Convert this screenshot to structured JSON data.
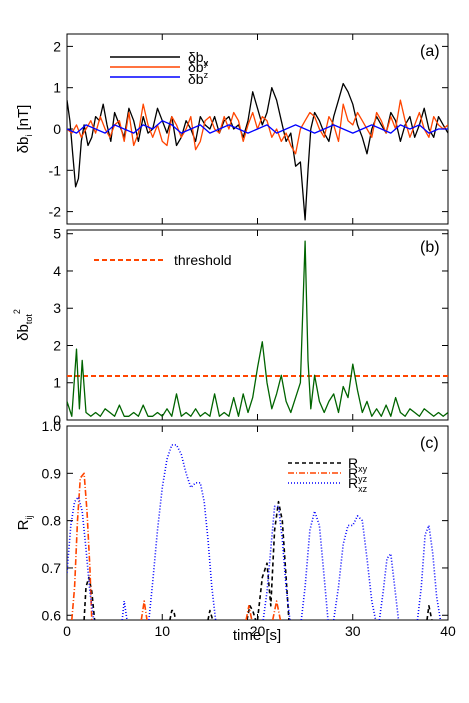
{
  "chart_data": [
    {
      "panel": "(a)",
      "type": "line",
      "ylabel": "δb_i [nT]",
      "xlim": [
        0,
        40
      ],
      "ylim": [
        -2.3,
        2.3
      ],
      "xticks": [
        0,
        10,
        20,
        30,
        40
      ],
      "yticks": [
        2,
        1,
        0,
        -1,
        -2
      ],
      "legend": "top-left",
      "series": [
        {
          "name": "δb_x",
          "color": "#000000",
          "x": [
            0,
            0.3,
            0.6,
            0.9,
            1.2,
            1.5,
            1.8,
            2.2,
            2.6,
            3.0,
            3.4,
            3.8,
            4.2,
            4.6,
            5.0,
            5.5,
            6.0,
            6.5,
            7.0,
            7.5,
            8.0,
            8.5,
            9.0,
            9.5,
            10.0,
            10.5,
            11.0,
            11.5,
            12.0,
            12.5,
            13.0,
            13.5,
            14.0,
            14.5,
            15.0,
            15.5,
            16.0,
            16.5,
            17.0,
            17.5,
            18.0,
            18.5,
            19.0,
            19.5,
            20.0,
            20.5,
            21.0,
            21.5,
            22.0,
            22.5,
            23.0,
            23.5,
            24.0,
            24.5,
            25.0,
            25.3,
            25.6,
            26.0,
            26.5,
            27.0,
            27.5,
            28.0,
            28.5,
            29.0,
            29.5,
            30.0,
            30.5,
            31.0,
            31.5,
            32.0,
            32.5,
            33.0,
            33.5,
            34.0,
            34.5,
            35.0,
            35.5,
            36.0,
            36.5,
            37.0,
            37.5,
            38.0,
            38.5,
            39.0,
            39.5,
            40.0
          ],
          "values": [
            0.7,
            0.2,
            -0.6,
            -1.4,
            -1.2,
            -0.3,
            0.1,
            -0.4,
            -0.2,
            0.3,
            0.2,
            0.6,
            0.1,
            -0.3,
            0.4,
            0.1,
            -0.2,
            0.5,
            0.2,
            -0.3,
            0.3,
            -0.1,
            0.0,
            0.5,
            0.2,
            -0.1,
            0.3,
            -0.4,
            -0.2,
            0.2,
            0.0,
            -0.3,
            0.3,
            0.1,
            0.0,
            0.3,
            -0.1,
            0.2,
            0.3,
            0.0,
            0.1,
            -0.2,
            0.2,
            0.9,
            0.5,
            0.1,
            0.4,
            1.0,
            0.7,
            0.2,
            -0.3,
            -0.1,
            -0.9,
            -0.8,
            -2.2,
            -1.0,
            0.0,
            0.4,
            0.2,
            -0.1,
            -0.3,
            0.3,
            0.7,
            1.1,
            0.9,
            0.6,
            0.1,
            -0.2,
            -0.6,
            0.0,
            0.3,
            0.1,
            -0.1,
            0.4,
            0.2,
            -0.3,
            0.1,
            0.3,
            -0.2,
            0.1,
            0.5,
            0.0,
            -0.2,
            0.3,
            0.1,
            -0.1
          ]
        },
        {
          "name": "δb_y",
          "color": "#ff4500",
          "x": [
            0,
            0.5,
            1.0,
            1.5,
            2.0,
            2.5,
            3.0,
            3.5,
            4.0,
            4.5,
            5.0,
            5.5,
            6.0,
            6.5,
            7.0,
            7.5,
            8.0,
            8.5,
            9.0,
            9.5,
            10.0,
            10.5,
            11.0,
            11.5,
            12.0,
            12.5,
            13.0,
            13.5,
            14.0,
            14.5,
            15.0,
            15.5,
            16.0,
            16.5,
            17.0,
            17.5,
            18.0,
            18.5,
            19.0,
            19.5,
            20.0,
            20.5,
            21.0,
            21.5,
            22.0,
            22.5,
            23.0,
            23.5,
            24.0,
            24.5,
            25.0,
            25.5,
            26.0,
            26.5,
            27.0,
            27.5,
            28.0,
            28.5,
            29.0,
            29.5,
            30.0,
            30.5,
            31.0,
            31.5,
            32.0,
            32.5,
            33.0,
            33.5,
            34.0,
            34.5,
            35.0,
            35.5,
            36.0,
            36.5,
            37.0,
            37.5,
            38.0,
            38.5,
            39.0,
            39.5,
            40.0
          ],
          "values": [
            0.0,
            -0.1,
            0.1,
            -0.2,
            0.0,
            0.2,
            -0.1,
            0.3,
            0.0,
            -0.2,
            0.1,
            0.2,
            -0.3,
            0.4,
            -0.4,
            -0.1,
            0.6,
            0.1,
            -0.2,
            0.1,
            -0.3,
            -0.4,
            0.3,
            0.1,
            -0.2,
            0.0,
            0.3,
            -0.5,
            -0.3,
            0.2,
            0.3,
            0.0,
            -0.1,
            0.3,
            0.0,
            0.4,
            0.2,
            -0.3,
            0.1,
            0.4,
            0.0,
            0.3,
            0.2,
            -0.2,
            0.0,
            -0.3,
            -0.1,
            -0.4,
            -0.6,
            0.0,
            0.2,
            0.4,
            0.3,
            0.0,
            -0.2,
            0.3,
            0.1,
            -0.3,
            0.6,
            0.2,
            0.1,
            0.4,
            0.2,
            0.0,
            -0.2,
            0.4,
            0.2,
            -0.1,
            0.3,
            0.0,
            0.7,
            0.2,
            -0.2,
            0.1,
            0.4,
            0.0,
            -0.2,
            0.3,
            0.1,
            0.0,
            0.1
          ]
        },
        {
          "name": "δb_z",
          "color": "#0000ff",
          "x": [
            0,
            1,
            2,
            3,
            4,
            5,
            6,
            7,
            8,
            9,
            10,
            11,
            12,
            13,
            14,
            15,
            16,
            17,
            18,
            19,
            20,
            21,
            22,
            23,
            24,
            25,
            26,
            27,
            28,
            29,
            30,
            31,
            32,
            33,
            34,
            35,
            36,
            37,
            38,
            39,
            40
          ],
          "values": [
            0.0,
            -0.1,
            0.1,
            0.0,
            -0.1,
            0.1,
            0.0,
            -0.1,
            0.1,
            0.0,
            0.2,
            0.1,
            -0.1,
            0.0,
            0.1,
            -0.1,
            0.0,
            0.1,
            0.0,
            -0.1,
            0.0,
            0.1,
            -0.1,
            0.0,
            0.1,
            0.0,
            -0.1,
            0.0,
            0.1,
            0.0,
            -0.1,
            0.0,
            0.1,
            0.0,
            -0.1,
            0.1,
            0.0,
            0.1,
            -0.1,
            0.0,
            0.0
          ]
        }
      ]
    },
    {
      "panel": "(b)",
      "type": "line",
      "ylabel": "δb_tot^2",
      "xlim": [
        0,
        40
      ],
      "ylim": [
        0,
        5.1
      ],
      "xticks": [
        0,
        10,
        20,
        30,
        40
      ],
      "yticks": [
        0,
        1,
        2,
        3,
        4,
        5
      ],
      "legend": "top-left",
      "threshold": {
        "name": "threshold",
        "value": 1.18,
        "color": "#ff4500"
      },
      "series": [
        {
          "name": "",
          "color": "#006400",
          "x": [
            0,
            0.5,
            1.0,
            1.3,
            1.6,
            2.0,
            2.5,
            3.0,
            3.5,
            4.0,
            4.5,
            5.0,
            5.5,
            6.0,
            6.5,
            7.0,
            7.5,
            8.0,
            8.5,
            9.0,
            9.5,
            10.0,
            10.5,
            11.0,
            11.5,
            12.0,
            12.5,
            13.0,
            13.5,
            14.0,
            14.5,
            15.0,
            15.5,
            16.0,
            16.5,
            17.0,
            17.5,
            18.0,
            18.5,
            19.0,
            19.5,
            20.0,
            20.5,
            21.0,
            21.5,
            22.0,
            22.5,
            23.0,
            23.5,
            24.0,
            24.5,
            25.0,
            25.3,
            25.6,
            26.0,
            26.5,
            27.0,
            27.5,
            28.0,
            28.5,
            29.0,
            29.5,
            30.0,
            30.5,
            31.0,
            31.5,
            32.0,
            32.5,
            33.0,
            33.5,
            34.0,
            34.5,
            35.0,
            35.5,
            36.0,
            36.5,
            37.0,
            37.5,
            38.0,
            38.5,
            39.0,
            39.5,
            40.0
          ],
          "values": [
            0.5,
            0.1,
            1.9,
            0.3,
            1.6,
            0.2,
            0.1,
            0.2,
            0.1,
            0.3,
            0.2,
            0.1,
            0.4,
            0.1,
            0.1,
            0.2,
            0.1,
            0.4,
            0.1,
            0.1,
            0.2,
            0.1,
            0.3,
            0.1,
            0.7,
            0.1,
            0.2,
            0.1,
            0.3,
            0.1,
            0.2,
            0.1,
            0.7,
            0.1,
            0.2,
            0.1,
            0.6,
            0.1,
            0.7,
            0.2,
            0.6,
            1.4,
            2.1,
            1.0,
            0.3,
            0.7,
            1.2,
            0.5,
            0.2,
            0.6,
            1.0,
            4.8,
            1.6,
            0.3,
            1.2,
            0.5,
            0.2,
            0.5,
            0.7,
            0.2,
            0.9,
            0.6,
            1.5,
            0.8,
            0.2,
            0.5,
            0.1,
            0.3,
            0.1,
            0.4,
            0.1,
            0.6,
            0.2,
            0.1,
            0.3,
            0.2,
            0.1,
            0.3,
            0.2,
            0.1,
            0.2,
            0.1,
            0.2
          ]
        }
      ]
    },
    {
      "panel": "(c)",
      "type": "line",
      "ylabel": "R_ij",
      "xlabel": "time [s]",
      "xlim": [
        0,
        40
      ],
      "ylim": [
        0.59,
        1.0
      ],
      "xticks": [
        0,
        10,
        20,
        30,
        40
      ],
      "yticks": [
        0.6,
        0.7,
        0.8,
        0.9,
        1.0
      ],
      "legend": "top-right",
      "series": [
        {
          "name": "R_xy",
          "color": "#000000",
          "dash": "dashed",
          "segments": [
            {
              "x": [
                1.8,
                2.0,
                2.3,
                2.6,
                2.9
              ],
              "values": [
                0.59,
                0.66,
                0.68,
                0.65,
                0.59
              ]
            },
            {
              "x": [
                10.8,
                11.0,
                11.2,
                11.4
              ],
              "values": [
                0.59,
                0.61,
                0.61,
                0.59
              ]
            },
            {
              "x": [
                14.8,
                15.0,
                15.3
              ],
              "values": [
                0.59,
                0.61,
                0.59
              ]
            },
            {
              "x": [
                18.9,
                19.2,
                19.5,
                19.8
              ],
              "values": [
                0.59,
                0.62,
                0.61,
                0.59
              ]
            },
            {
              "x": [
                20.0,
                20.5,
                21.0,
                21.4,
                21.8,
                22.2,
                22.6,
                23.0,
                23.3
              ],
              "values": [
                0.59,
                0.68,
                0.71,
                0.62,
                0.78,
                0.84,
                0.8,
                0.68,
                0.59
              ]
            },
            {
              "x": [
                37.8,
                38.0,
                38.3
              ],
              "values": [
                0.59,
                0.62,
                0.59
              ]
            }
          ]
        },
        {
          "name": "R_yz",
          "color": "#ff4500",
          "dash": "dashdot",
          "segments": [
            {
              "x": [
                0.5,
                0.8,
                1.1,
                1.4,
                1.8,
                2.1,
                2.4,
                2.6
              ],
              "values": [
                0.59,
                0.66,
                0.8,
                0.89,
                0.9,
                0.82,
                0.7,
                0.59
              ]
            },
            {
              "x": [
                7.8,
                8.1,
                8.4
              ],
              "values": [
                0.59,
                0.63,
                0.59
              ]
            },
            {
              "x": [
                18.8,
                19.1,
                19.4
              ],
              "values": [
                0.59,
                0.62,
                0.59
              ]
            },
            {
              "x": [
                21.6,
                22.0,
                22.4
              ],
              "values": [
                0.59,
                0.63,
                0.59
              ]
            }
          ]
        },
        {
          "name": "R_xz",
          "color": "#0000ff",
          "dash": "dotted",
          "segments": [
            {
              "x": [
                0.0,
                0.4,
                0.8,
                1.2,
                1.6,
                2.0,
                2.4,
                2.8
              ],
              "values": [
                0.69,
                0.79,
                0.84,
                0.85,
                0.82,
                0.74,
                0.65,
                0.59
              ]
            },
            {
              "x": [
                5.8,
                6.0,
                6.3
              ],
              "values": [
                0.59,
                0.63,
                0.59
              ]
            },
            {
              "x": [
                8.6,
                9.0,
                9.5,
                10.0,
                10.5,
                11.0,
                11.5,
                12.0,
                12.5,
                13.0,
                13.5,
                14.0,
                14.4,
                14.8,
                15.2,
                15.6
              ],
              "values": [
                0.59,
                0.67,
                0.78,
                0.87,
                0.93,
                0.96,
                0.96,
                0.94,
                0.9,
                0.87,
                0.88,
                0.88,
                0.84,
                0.76,
                0.66,
                0.59
              ]
            },
            {
              "x": [
                20.6,
                21.0,
                21.4,
                21.8,
                22.2,
                22.6,
                23.0,
                23.4
              ],
              "values": [
                0.59,
                0.65,
                0.74,
                0.83,
                0.83,
                0.76,
                0.66,
                0.59
              ]
            },
            {
              "x": [
                24.6,
                25.0,
                25.5,
                26.0,
                26.5,
                27.0,
                27.4
              ],
              "values": [
                0.59,
                0.66,
                0.78,
                0.82,
                0.79,
                0.68,
                0.59
              ]
            },
            {
              "x": [
                28.0,
                28.5,
                29.0,
                29.5,
                30.0,
                30.5,
                31.0,
                31.5,
                32.0,
                32.4
              ],
              "values": [
                0.59,
                0.66,
                0.75,
                0.79,
                0.79,
                0.81,
                0.8,
                0.72,
                0.63,
                0.59
              ]
            },
            {
              "x": [
                32.8,
                33.2,
                33.6,
                34.0,
                34.4,
                34.8
              ],
              "values": [
                0.59,
                0.65,
                0.72,
                0.73,
                0.66,
                0.59
              ]
            },
            {
              "x": [
                36.8,
                37.2,
                37.6,
                38.0,
                38.4,
                38.8,
                39.2
              ],
              "values": [
                0.59,
                0.66,
                0.77,
                0.79,
                0.73,
                0.64,
                0.59
              ]
            }
          ]
        }
      ]
    }
  ]
}
